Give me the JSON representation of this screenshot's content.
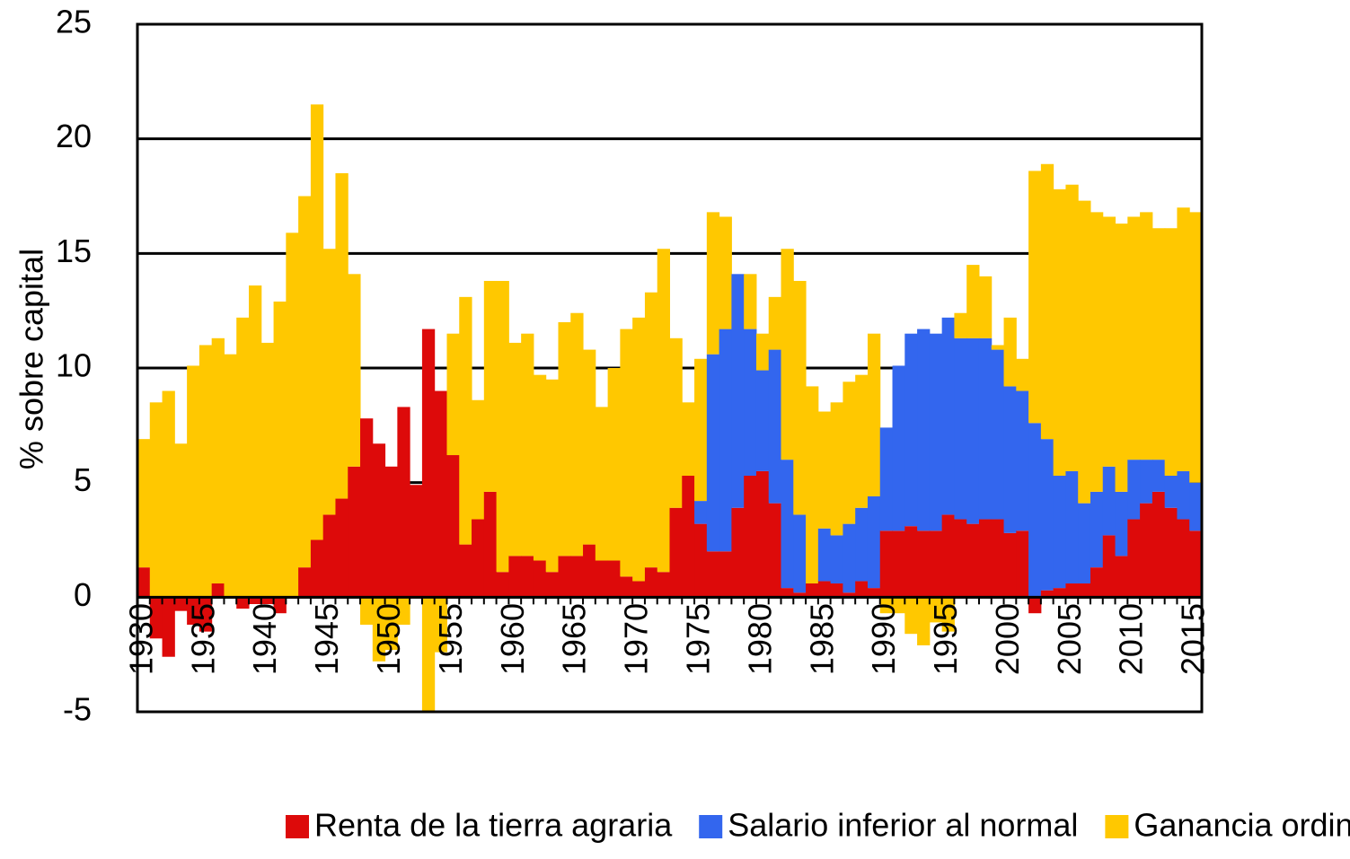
{
  "chart_data": {
    "type": "stacked-bar",
    "y_label": "% sobre capital",
    "categories": [
      "1930",
      null,
      null,
      null,
      null,
      "1935",
      null,
      null,
      null,
      null,
      "1940",
      null,
      null,
      null,
      null,
      "1945",
      null,
      null,
      null,
      null,
      "1950",
      null,
      null,
      null,
      null,
      "1955",
      null,
      null,
      null,
      null,
      "1960",
      null,
      null,
      null,
      null,
      "1965",
      null,
      null,
      null,
      null,
      "1970",
      null,
      null,
      null,
      null,
      "1975",
      null,
      null,
      null,
      null,
      "1980",
      null,
      null,
      null,
      null,
      "1985",
      null,
      null,
      null,
      null,
      "1990",
      null,
      null,
      null,
      null,
      "1995",
      null,
      null,
      null,
      null,
      "2000",
      null,
      null,
      null,
      null,
      "2005",
      null,
      null,
      null,
      null,
      "2010",
      null,
      null,
      null,
      null,
      "2015"
    ],
    "series": [
      {
        "name": "Renta de la tierra agraria",
        "color": "#dd0a0a",
        "values": [
          1.3,
          -1.8,
          -2.6,
          -0.6,
          -1.2,
          -1.5,
          0.6,
          0,
          -0.5,
          -0.3,
          -0.3,
          -0.7,
          0,
          1.3,
          2.5,
          3.6,
          4.3,
          5.7,
          7.8,
          6.7,
          5.7,
          8.3,
          4.9,
          11.7,
          9.0,
          6.2,
          2.3,
          3.4,
          4.6,
          1.1,
          1.8,
          1.8,
          1.6,
          1.1,
          1.8,
          1.8,
          2.3,
          1.6,
          1.6,
          0.9,
          0.7,
          1.3,
          1.1,
          3.9,
          5.3,
          3.2,
          2.0,
          2.0,
          3.9,
          5.3,
          5.5,
          4.1,
          0.4,
          0.2,
          0.6,
          0.7,
          0.6,
          0.2,
          0.7,
          0.4,
          2.9,
          2.9,
          3.1,
          2.9,
          2.9,
          3.6,
          3.4,
          3.2,
          3.4,
          3.4,
          2.8,
          2.9,
          -0.7,
          0.3,
          0.4,
          0.6,
          0.6,
          1.3,
          2.7,
          1.8,
          3.4,
          4.1,
          4.6,
          3.9,
          3.4,
          2.9
        ]
      },
      {
        "name": "Salario inferior al normal",
        "color": "#3366ee",
        "values": [
          0,
          0,
          0,
          0,
          0,
          0,
          0,
          0,
          0,
          0,
          0,
          0,
          0,
          0,
          0,
          0,
          0,
          0,
          0,
          0,
          0,
          0,
          0,
          0,
          0,
          0,
          0,
          0,
          0,
          0,
          0,
          0,
          0,
          0,
          0,
          0,
          0,
          0,
          0,
          0,
          0,
          0,
          0,
          0,
          0,
          1.0,
          8.6,
          9.7,
          10.2,
          6.4,
          4.4,
          6.7,
          5.6,
          3.4,
          0,
          2.3,
          2.1,
          3.0,
          3.2,
          4.0,
          4.5,
          7.2,
          8.4,
          8.8,
          8.6,
          8.6,
          7.9,
          8.1,
          7.9,
          7.4,
          6.4,
          6.1,
          7.6,
          6.6,
          4.9,
          4.9,
          3.5,
          3.3,
          3.0,
          2.8,
          2.6,
          1.9,
          1.4,
          1.4,
          2.1,
          2.1
        ]
      },
      {
        "name": "Ganancia ordinaria",
        "color": "#ffc800",
        "values": [
          5.6,
          8.5,
          9.0,
          6.7,
          10.1,
          11.0,
          10.7,
          10.6,
          12.2,
          13.6,
          11.1,
          12.9,
          15.9,
          16.2,
          19.0,
          11.6,
          14.2,
          8.4,
          -1.2,
          -2.8,
          -2.3,
          -1.2,
          0,
          -5.0,
          -2.4,
          5.3,
          10.8,
          5.2,
          9.2,
          12.7,
          9.3,
          9.7,
          8.1,
          8.4,
          10.2,
          10.6,
          8.5,
          6.7,
          8.4,
          10.8,
          11.5,
          12.0,
          14.1,
          7.4,
          3.2,
          6.2,
          6.2,
          4.9,
          0,
          2.4,
          1.6,
          2.3,
          9.2,
          10.2,
          8.6,
          5.1,
          5.8,
          6.2,
          5.8,
          7.1,
          -0.7,
          -0.7,
          -1.6,
          -2.1,
          -1.1,
          -1.5,
          1.1,
          3.2,
          2.7,
          0.2,
          3.0,
          1.4,
          11.0,
          12.0,
          12.5,
          12.5,
          13.2,
          12.2,
          10.9,
          11.7,
          10.6,
          10.8,
          10.1,
          10.8,
          11.5,
          11.8
        ]
      }
    ],
    "ylim": [
      -5,
      25
    ],
    "yticks": [
      -5,
      0,
      5,
      10,
      15,
      20,
      25
    ],
    "grid": true,
    "legend": "bottom"
  }
}
